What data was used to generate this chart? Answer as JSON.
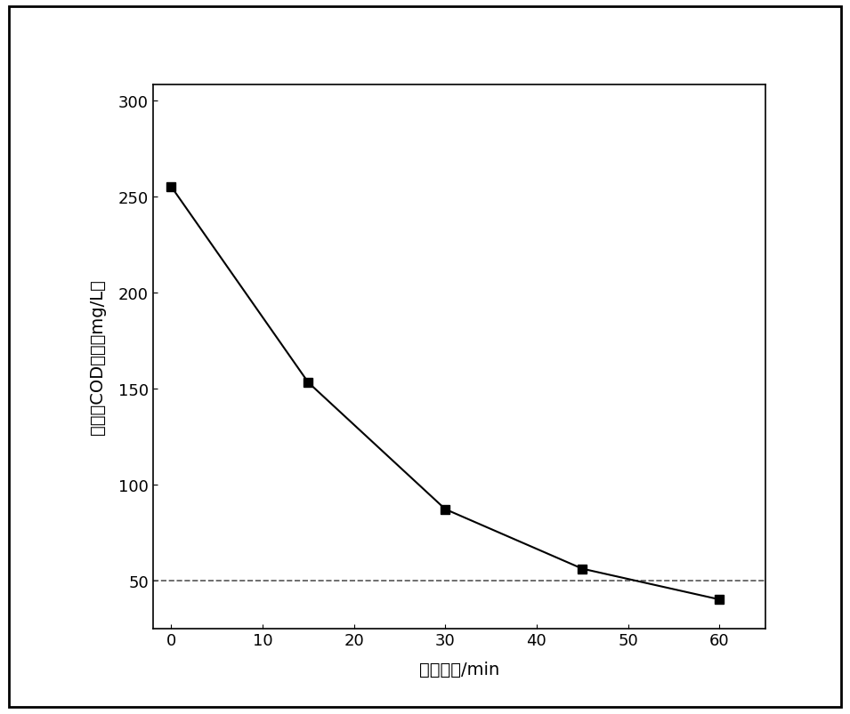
{
  "x": [
    0,
    15,
    30,
    45,
    60
  ],
  "y": [
    255,
    153,
    87,
    56,
    40
  ],
  "dashed_line_y": 50,
  "xlabel": "反应时间/min",
  "ylabel": "废水中COD值／（mg/L）",
  "xlim": [
    -2,
    65
  ],
  "ylim": [
    25,
    308
  ],
  "xticks": [
    0,
    10,
    20,
    30,
    40,
    50,
    60
  ],
  "yticks": [
    50,
    100,
    150,
    200,
    250,
    300
  ],
  "line_color": "#000000",
  "marker": "s",
  "marker_size": 7,
  "dashed_color": "#555555",
  "background_color": "#ffffff",
  "border_color": "#000000",
  "xlabel_fontsize": 14,
  "ylabel_fontsize": 14,
  "tick_fontsize": 13,
  "outer_border_lw": 2.0,
  "outer_border_color": "#000000"
}
